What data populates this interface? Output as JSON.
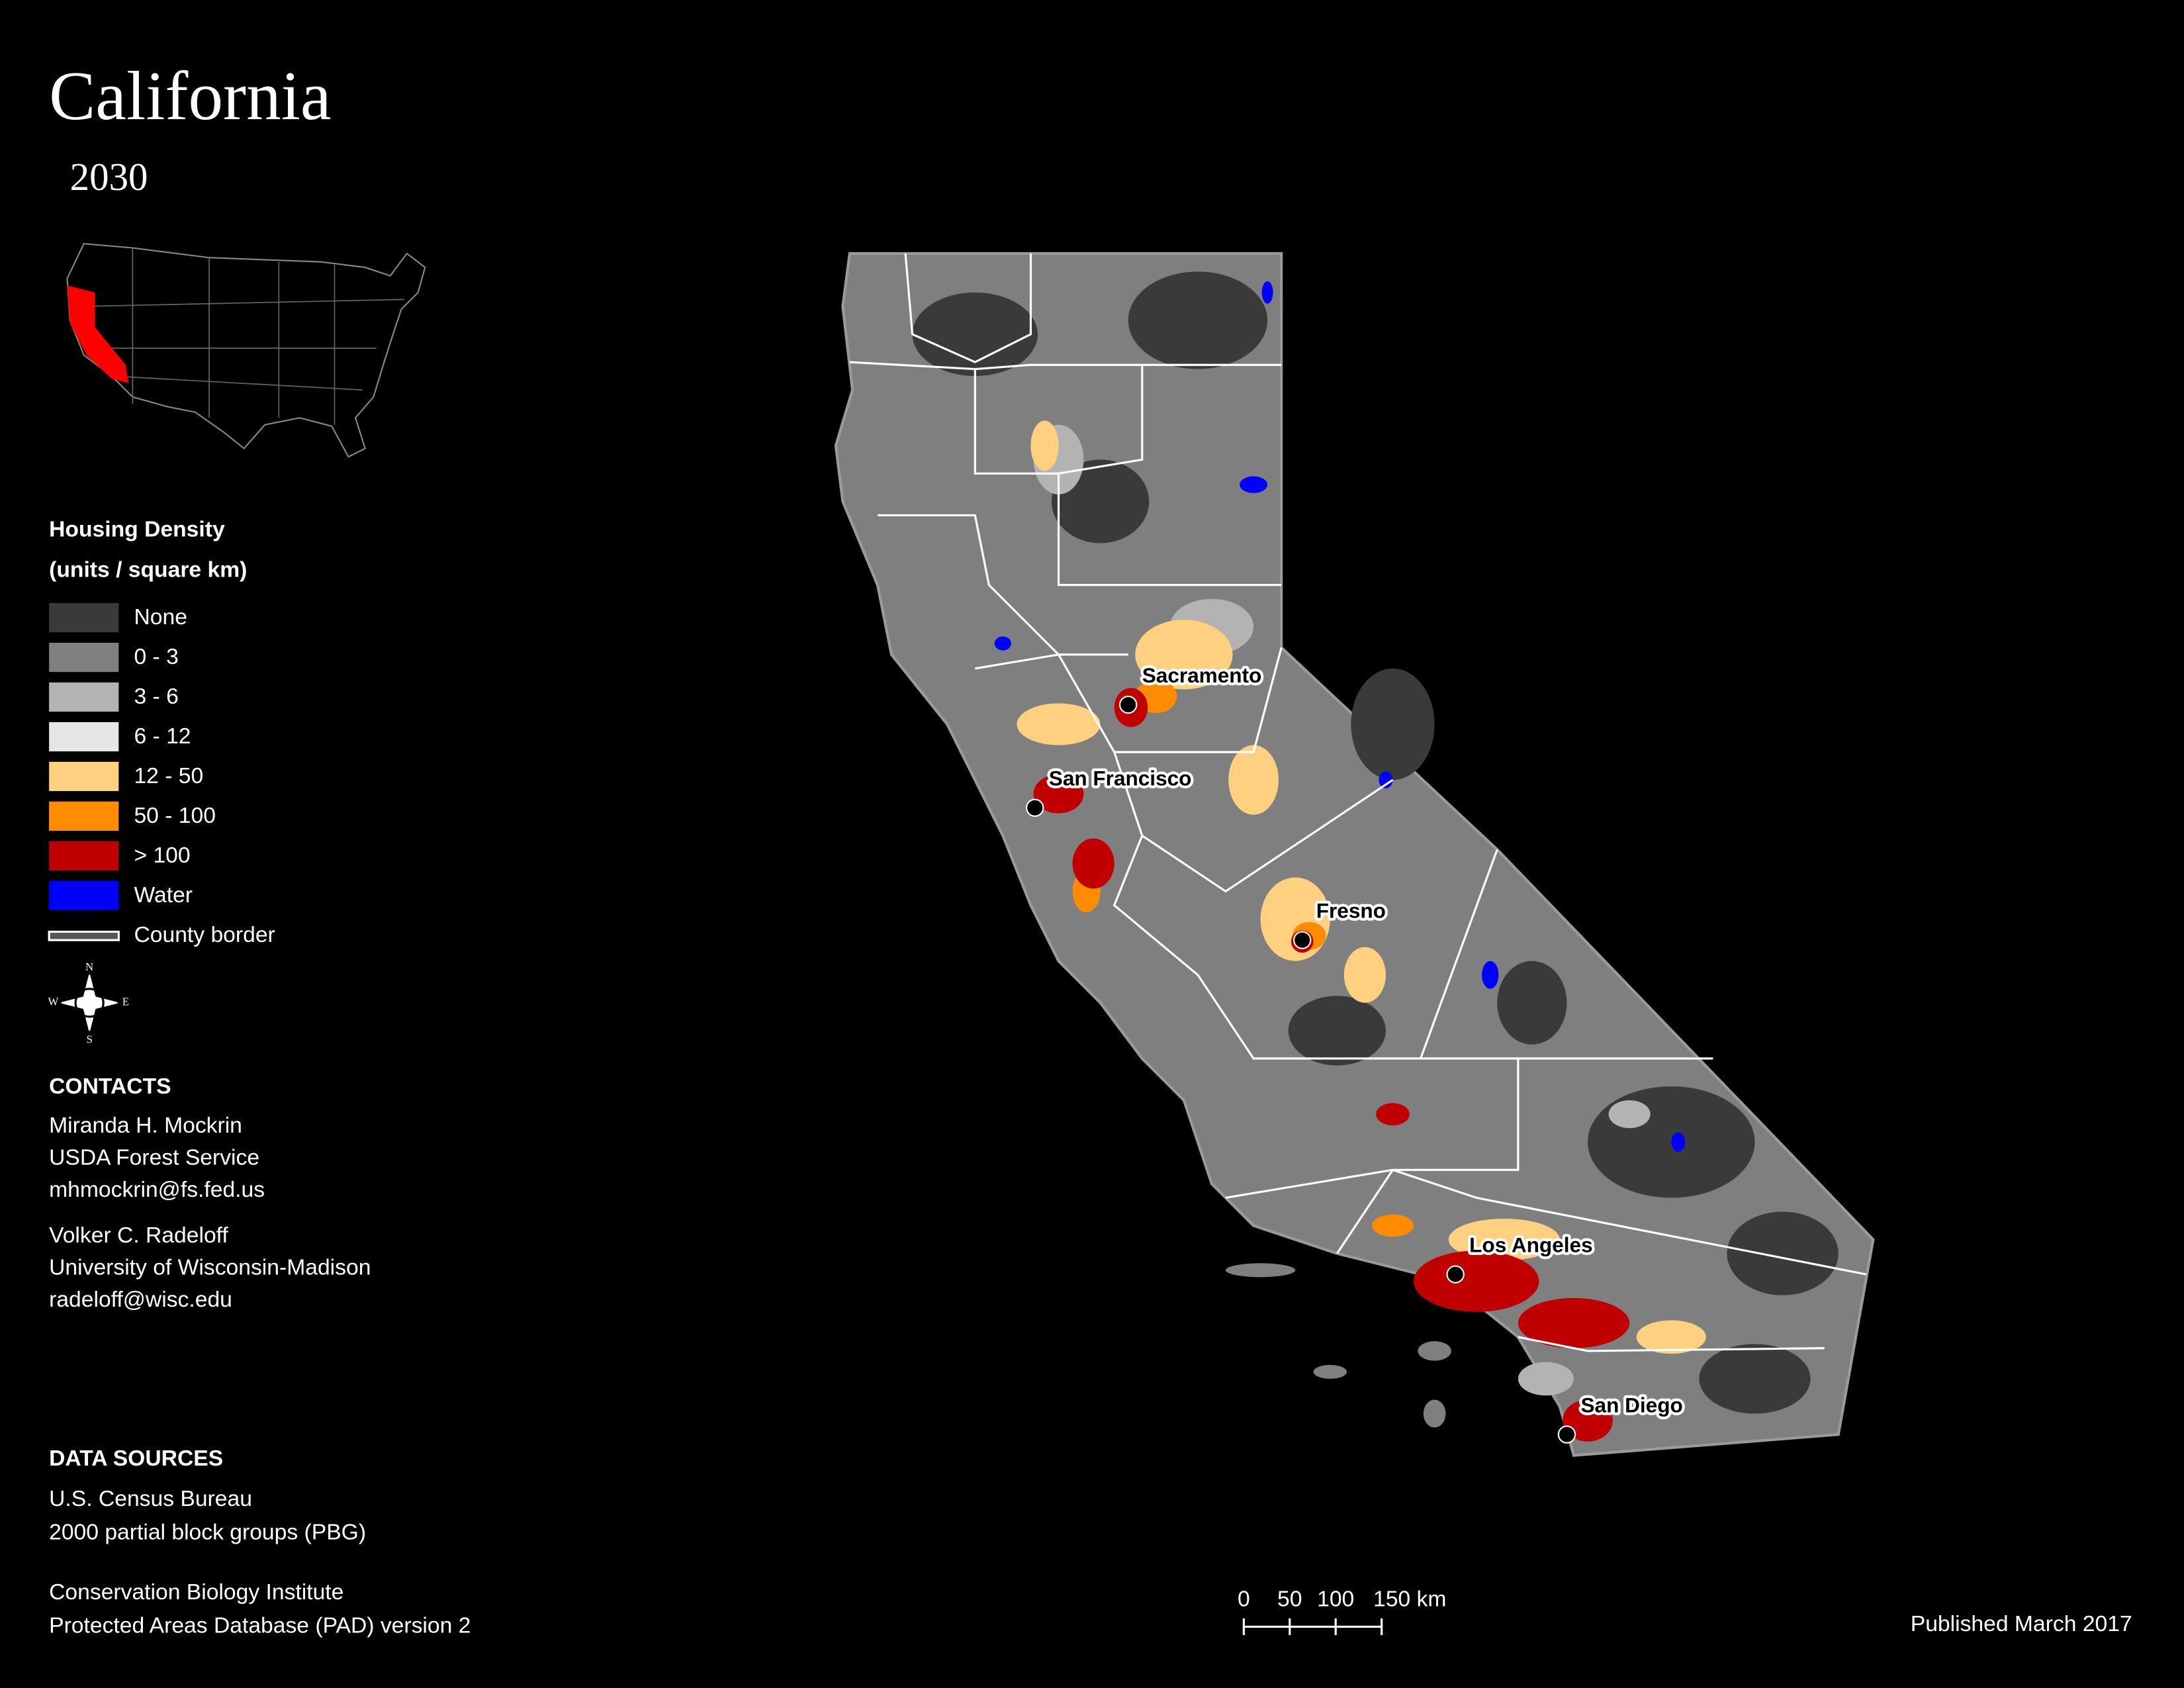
{
  "header": {
    "title": "California",
    "subtitle": "2030"
  },
  "legend": {
    "title": "Housing Density",
    "units": "(units / square km)",
    "items": [
      {
        "label": "None",
        "color": "#3a3a3a"
      },
      {
        "label": "0 - 3",
        "color": "#7f7f7f"
      },
      {
        "label": "3 - 6",
        "color": "#b3b3b3"
      },
      {
        "label": "6 - 12",
        "color": "#e6e6e6"
      },
      {
        "label": "12 - 50",
        "color": "#ffd080"
      },
      {
        "label": "50 - 100",
        "color": "#ff8c00"
      },
      {
        "label": "> 100",
        "color": "#c00000"
      },
      {
        "label": "Water",
        "color": "#0000ff"
      }
    ],
    "border": {
      "label": "County border",
      "color": "#ffffff"
    }
  },
  "compass": {
    "n": "N",
    "e": "E",
    "s": "S",
    "w": "W"
  },
  "contacts": {
    "title": "CONTACTS",
    "people": [
      [
        "Miranda H. Mockrin",
        "USDA Forest Service",
        "mhmockrin@fs.fed.us"
      ],
      [
        "Volker C. Radeloff",
        "University of Wisconsin-Madison",
        "radeloff@wisc.edu"
      ]
    ]
  },
  "data_sources": {
    "title": "DATA SOURCES",
    "groups": [
      [
        "U.S. Census Bureau",
        "2000 partial block groups (PBG)"
      ],
      [
        "Conservation Biology Institute",
        "Protected Areas Database (PAD) version 2"
      ]
    ]
  },
  "cities": [
    "Sacramento",
    "San Francisco",
    "Fresno",
    "Los Angeles",
    "San Diego"
  ],
  "scale_bar": [
    "0",
    "50",
    "100",
    "150 km"
  ],
  "published": "Published March 2017"
}
